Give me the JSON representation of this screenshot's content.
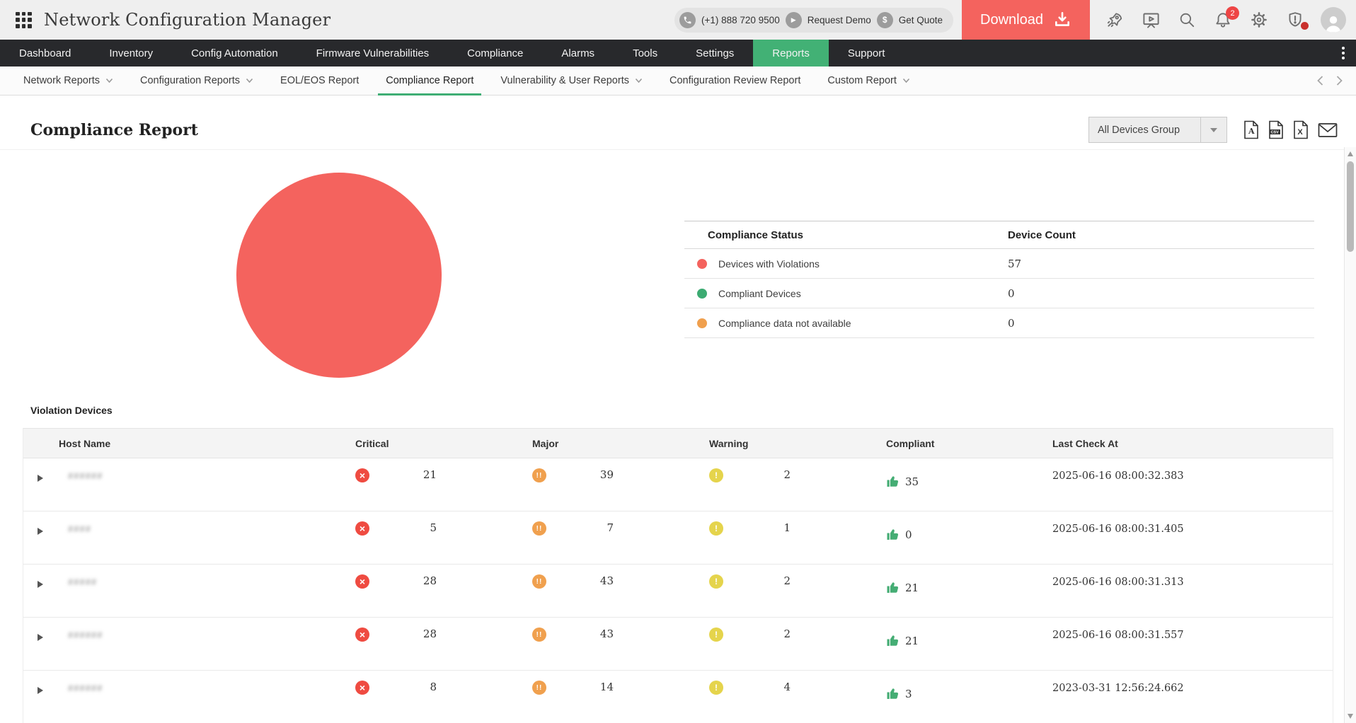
{
  "header": {
    "app_title": "Network Configuration Manager",
    "phone": "(+1) 888 720 9500",
    "request_demo_label": "Request Demo",
    "get_quote_label": "Get Quote",
    "download_label": "Download",
    "notification_badge": "2"
  },
  "mainnav": [
    {
      "label": "Dashboard",
      "active": false
    },
    {
      "label": "Inventory",
      "active": false
    },
    {
      "label": "Config Automation",
      "active": false
    },
    {
      "label": "Firmware Vulnerabilities",
      "active": false
    },
    {
      "label": "Compliance",
      "active": false
    },
    {
      "label": "Alarms",
      "active": false
    },
    {
      "label": "Tools",
      "active": false
    },
    {
      "label": "Settings",
      "active": false
    },
    {
      "label": "Reports",
      "active": true
    },
    {
      "label": "Support",
      "active": false
    }
  ],
  "subnav": [
    {
      "label": "Network Reports",
      "dropdown": true,
      "active": false
    },
    {
      "label": "Configuration Reports",
      "dropdown": true,
      "active": false
    },
    {
      "label": "EOL/EOS Report",
      "dropdown": false,
      "active": false
    },
    {
      "label": "Compliance Report",
      "dropdown": false,
      "active": true
    },
    {
      "label": "Vulnerability & User Reports",
      "dropdown": true,
      "active": false
    },
    {
      "label": "Configuration Review Report",
      "dropdown": false,
      "active": false
    },
    {
      "label": "Custom Report",
      "dropdown": true,
      "active": false
    }
  ],
  "page": {
    "title": "Compliance Report",
    "device_group_selected": "All Devices Group",
    "export_csv_label": "CSV",
    "export_xls_label": "X",
    "export_pdf_label": "A"
  },
  "chart_data": {
    "type": "pie",
    "title": "Compliance Status",
    "labels": [
      "Devices with Violations",
      "Compliant Devices",
      "Compliance data not available"
    ],
    "values": [
      57,
      0,
      0
    ],
    "colors": [
      "#f4635e",
      "#3cab72",
      "#f0a04e"
    ],
    "legend_position": "right-table"
  },
  "status_table": {
    "headers": [
      "Compliance Status",
      "Device Count"
    ],
    "rows": [
      {
        "label": "Devices with Violations",
        "color": "#f4635e",
        "count": "57"
      },
      {
        "label": "Compliant Devices",
        "color": "#3cab72",
        "count": "0"
      },
      {
        "label": "Compliance data not available",
        "color": "#f0a04e",
        "count": "0"
      }
    ]
  },
  "violations": {
    "section_title": "Violation Devices",
    "headers": [
      "Host Name",
      "Critical",
      "Major",
      "Warning",
      "Compliant",
      "Last Check At"
    ],
    "rows": [
      {
        "host_masked": "######",
        "critical": "21",
        "major": "39",
        "warning": "2",
        "compliant": "35",
        "last_check": "2025-06-16 08:00:32.383"
      },
      {
        "host_masked": "####",
        "critical": "5",
        "major": "7",
        "warning": "1",
        "compliant": "0",
        "last_check": "2025-06-16 08:00:31.405"
      },
      {
        "host_masked": "#####",
        "critical": "28",
        "major": "43",
        "warning": "2",
        "compliant": "21",
        "last_check": "2025-06-16 08:00:31.313"
      },
      {
        "host_masked": "######",
        "critical": "28",
        "major": "43",
        "warning": "2",
        "compliant": "21",
        "last_check": "2025-06-16 08:00:31.557"
      },
      {
        "host_masked": "######",
        "critical": "8",
        "major": "14",
        "warning": "4",
        "compliant": "3",
        "last_check": "2023-03-31 12:56:24.662"
      }
    ]
  }
}
